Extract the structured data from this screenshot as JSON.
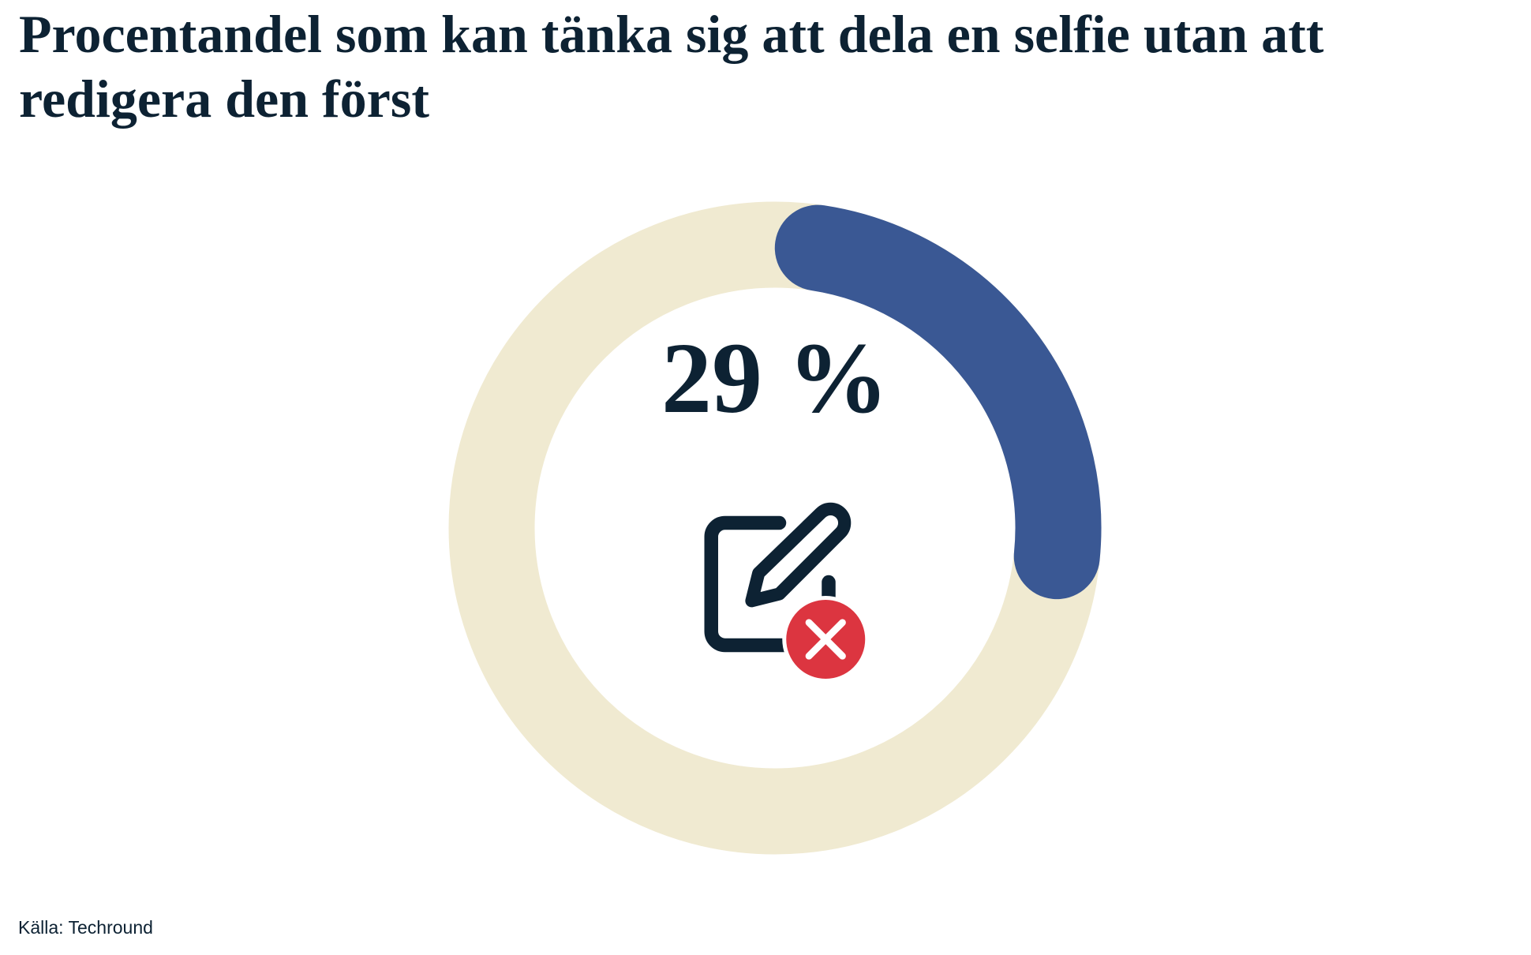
{
  "chart_data": {
    "type": "donut",
    "title": "Procentandel som kan tänka sig att dela en selfie utan att redigera den först",
    "values": [
      29
    ],
    "value_labels": [
      "29 %"
    ],
    "max": 100,
    "color": "#3a5894",
    "track_color": "#f0ead1",
    "source": "Källa: Techround"
  }
}
